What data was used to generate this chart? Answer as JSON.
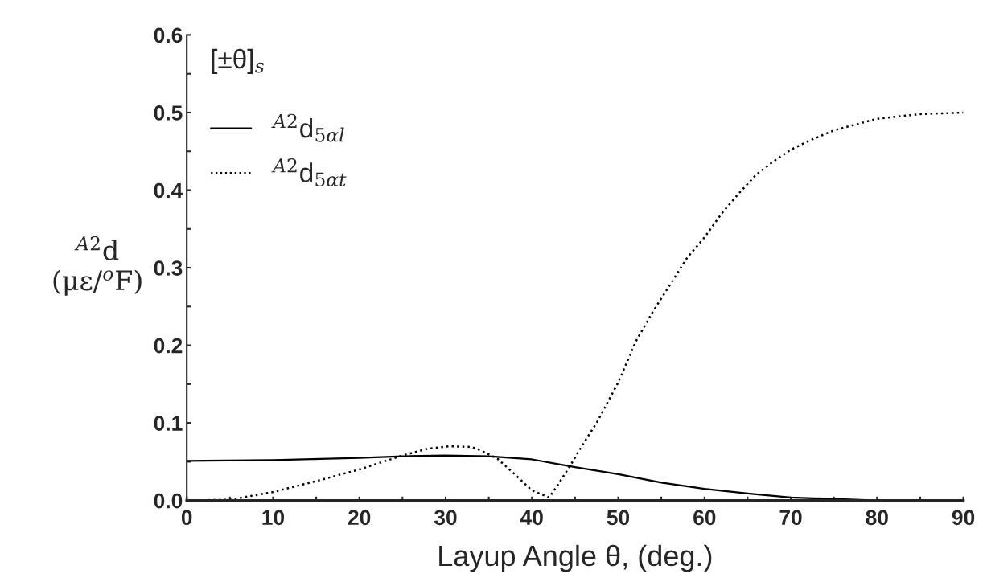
{
  "chart_data": {
    "type": "line",
    "title": "[±θ]$_{s}$",
    "xlabel": "Layup Angle θ, (deg.)",
    "ylabel": "$^{A2}$d\n(με/$^{o}$F)",
    "series": [
      {
        "name": "$^{A2}$d$_{5αl}$",
        "color": "#000000",
        "line_style": "solid",
        "x": [
          0,
          10,
          20,
          25,
          30,
          35,
          40,
          45,
          50,
          55,
          60,
          65,
          70,
          75,
          80,
          90
        ],
        "values": [
          0.051,
          0.052,
          0.055,
          0.057,
          0.058,
          0.057,
          0.053,
          0.043,
          0.034,
          0.023,
          0.015,
          0.009,
          0.004,
          0.002,
          0,
          0
        ]
      },
      {
        "name": "$^{A2}$d$_{5αt}$",
        "color": "#000000",
        "line_style": "dotted",
        "x": [
          0,
          5,
          10,
          15,
          20,
          25,
          28,
          30.5,
          33,
          34,
          36,
          38,
          40,
          42,
          43,
          44.5,
          46,
          47.5,
          50,
          52,
          54,
          56,
          58,
          60,
          62,
          64,
          66,
          68,
          70,
          72,
          75,
          80,
          85,
          90
        ],
        "values": [
          0,
          0.001,
          0.011,
          0.025,
          0.04,
          0.058,
          0.067,
          0.07,
          0.069,
          0.065,
          0.054,
          0.034,
          0.013,
          0.004,
          0.02,
          0.046,
          0.074,
          0.1,
          0.152,
          0.204,
          0.243,
          0.278,
          0.313,
          0.339,
          0.37,
          0.396,
          0.42,
          0.437,
          0.452,
          0.463,
          0.477,
          0.492,
          0.498,
          0.5
        ]
      }
    ],
    "xlim": [
      0,
      90
    ],
    "ylim": [
      0,
      0.6
    ],
    "xticks": [
      0,
      {
        "value": 5,
        "label": null
      },
      10,
      {
        "value": 15,
        "label": null
      },
      20,
      {
        "value": 25,
        "label": null
      },
      30,
      {
        "value": 35,
        "label": null
      },
      40,
      {
        "value": 45,
        "label": null
      },
      50,
      {
        "value": 55,
        "label": null
      },
      60,
      {
        "value": 65,
        "label": null
      },
      70,
      {
        "value": 75,
        "label": null
      },
      80,
      {
        "value": 85,
        "label": null
      },
      90
    ],
    "yticks": [
      {
        "value": 0,
        "label": "0.0"
      },
      {
        "value": 0.05,
        "label": null
      },
      0.1,
      {
        "value": 0.15,
        "label": null
      },
      0.2,
      {
        "value": 0.25,
        "label": null
      },
      0.3,
      {
        "value": 0.35,
        "label": null
      },
      0.4,
      {
        "value": 0.45,
        "label": null
      },
      0.5,
      {
        "value": 0.55,
        "label": null
      },
      0.6
    ],
    "grid": false,
    "legend": "top left",
    "marker": "none"
  }
}
